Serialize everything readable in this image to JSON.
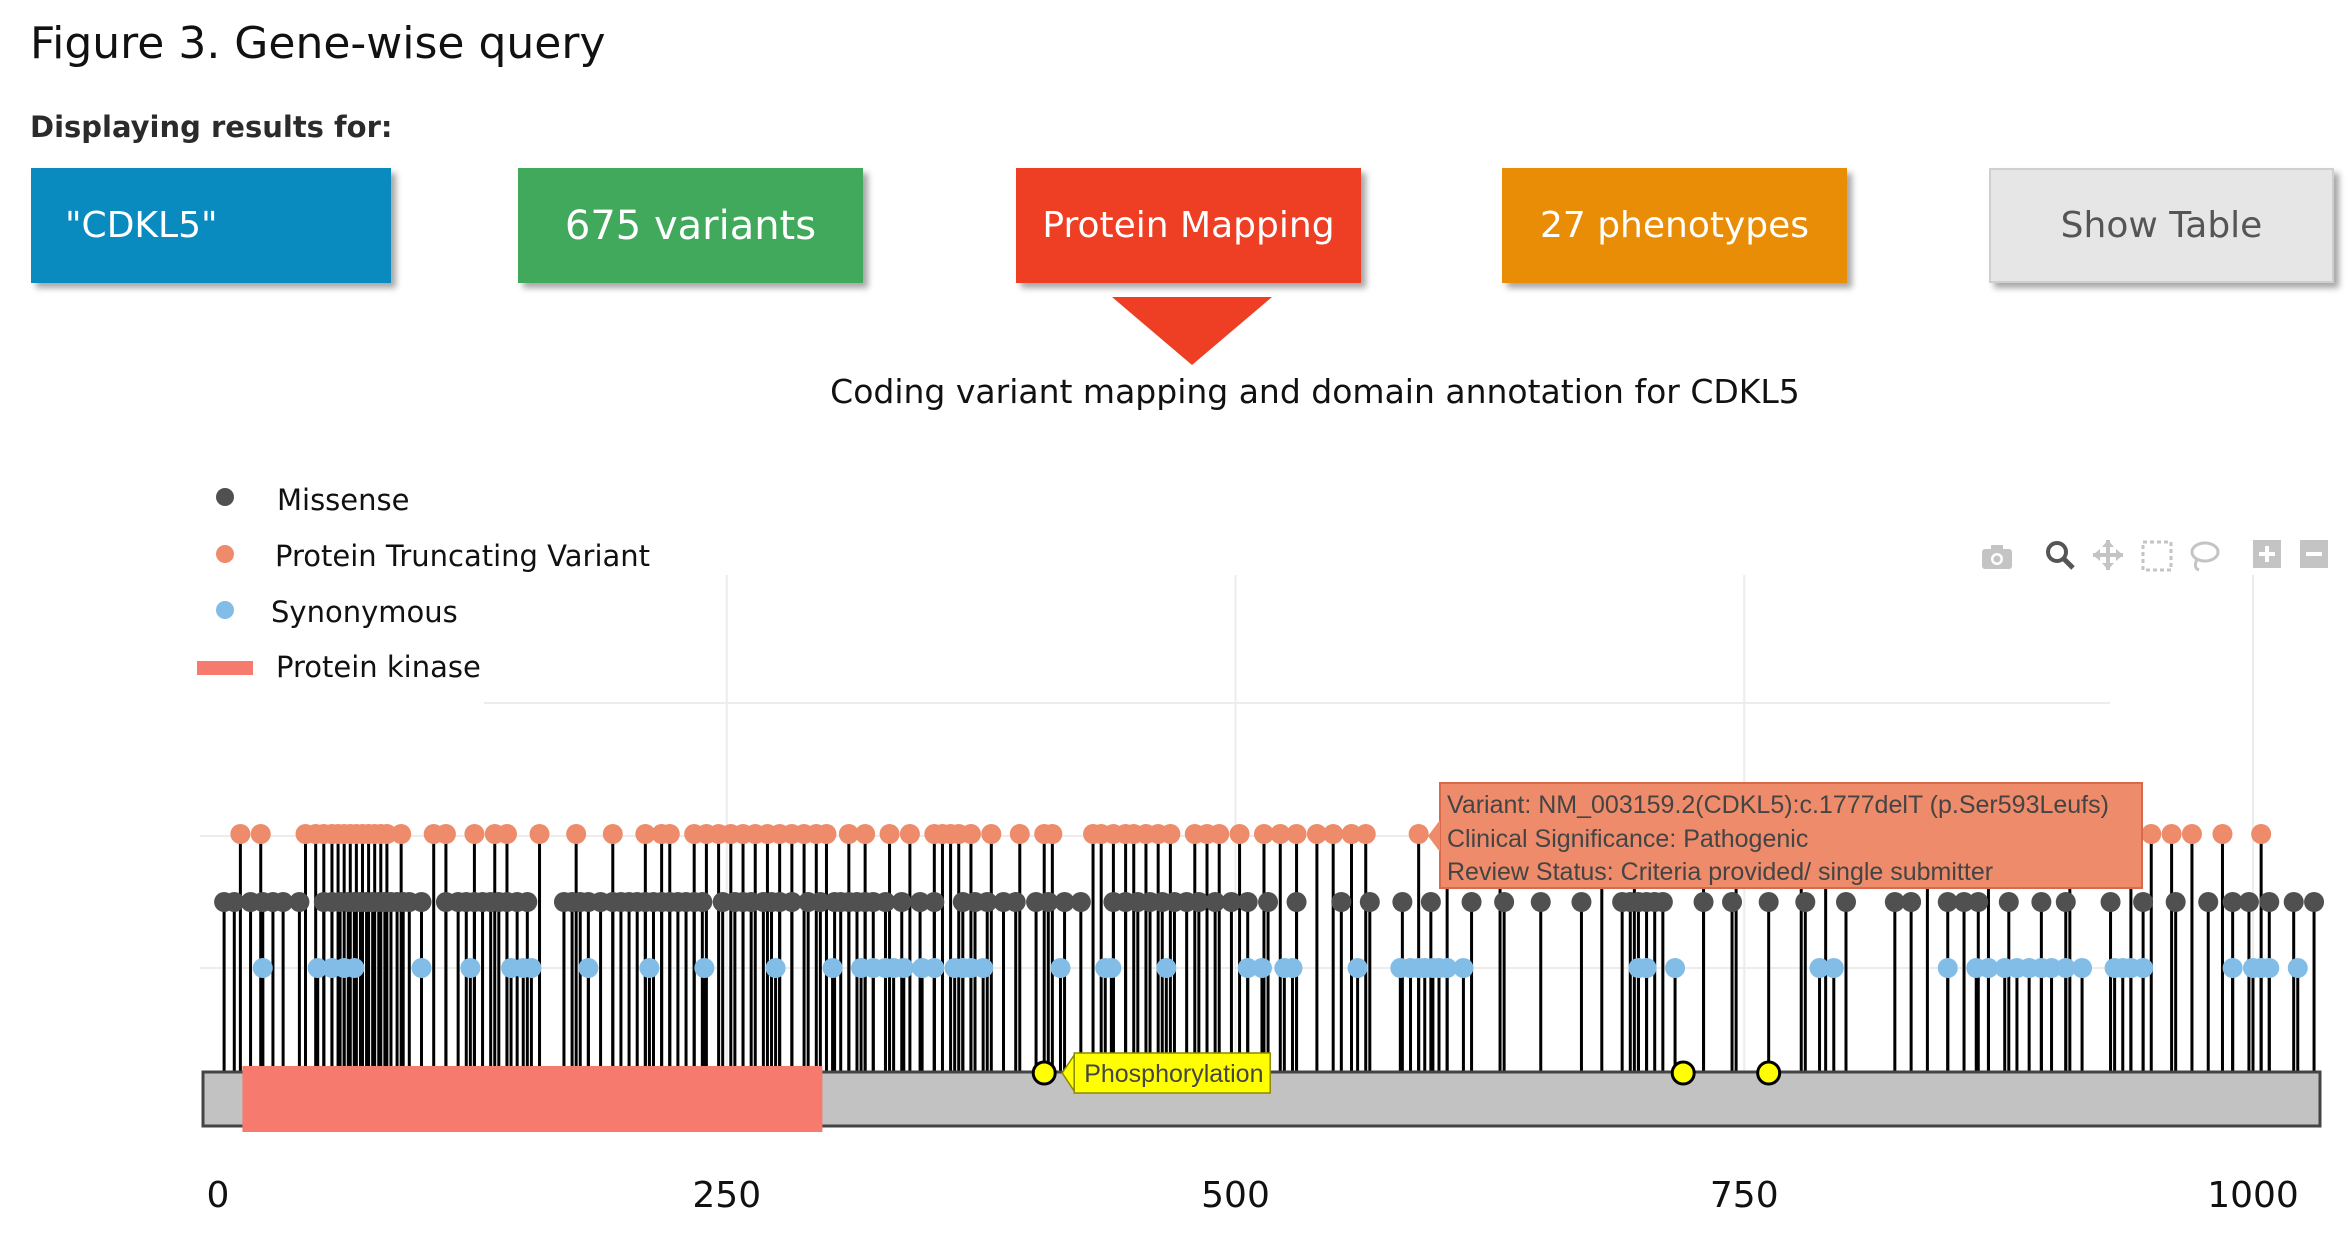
{
  "figure_title": "Figure 3. Gene-wise query",
  "display_label": "Displaying results for:",
  "tiles": {
    "gene": "\"CDKL5\"",
    "variants": "675 variants",
    "protein": "Protein Mapping",
    "phenotypes": "27 phenotypes",
    "table": "Show Table"
  },
  "colors": {
    "gene": "#0a8bbf",
    "variants": "#41a95c",
    "protein": "#ee3f24",
    "phenotypes": "#e88d05",
    "table": "#e6e6e6",
    "missense": "#505050",
    "ptv": "#ee8b6a",
    "synonymous": "#82bde8",
    "kinase": "#f77a6f",
    "backbone": "#c2c2c2",
    "site": "#ffff00"
  },
  "subtitle": "Coding variant mapping and domain annotation for CDKL5",
  "toolbar_icons": [
    "camera-icon",
    "zoom-icon",
    "pan-icon",
    "box-select-icon",
    "lasso-icon",
    "zoom-in-icon",
    "zoom-out-icon"
  ],
  "chart_data": {
    "type": "scatter",
    "xlim": [
      -5,
      1030
    ],
    "x_ticks": [
      0,
      250,
      500,
      750,
      1000
    ],
    "grid": true,
    "legend_position": "top-left",
    "legend": [
      "Missense",
      "Protein Truncating Variant",
      "Synonymous",
      "Protein kinase"
    ],
    "protein_length": 1030,
    "series": [
      {
        "name": "Missense",
        "level": 2,
        "x": [
          3,
          8,
          16,
          22,
          27,
          32,
          40,
          52,
          56,
          60,
          64,
          67,
          70,
          73,
          76,
          79,
          82,
          85,
          88,
          91,
          94,
          100,
          112,
          118,
          122,
          126,
          130,
          134,
          138,
          142,
          147,
          152,
          170,
          174,
          178,
          182,
          188,
          194,
          198,
          202,
          206,
          210,
          214,
          218,
          222,
          226,
          230,
          234,
          238,
          248,
          254,
          258,
          262,
          268,
          272,
          276,
          282,
          290,
          296,
          303,
          306,
          310,
          314,
          318,
          322,
          328,
          336,
          345,
          352,
          366,
          372,
          378,
          386,
          392,
          402,
          408,
          416,
          424,
          440,
          446,
          452,
          458,
          464,
          470,
          476,
          482,
          490,
          498,
          506,
          516,
          530,
          552,
          566,
          582,
          596,
          616,
          632,
          650,
          670,
          690,
          694,
          698,
          702,
          706,
          710,
          730,
          744,
          762,
          780,
          800,
          824,
          832,
          850,
          858,
          865,
          880,
          896,
          908,
          930,
          946,
          962,
          978,
          990,
          998,
          1008,
          1020,
          1030
        ]
      },
      {
        "name": "Protein Truncating Variant",
        "level": 3,
        "x": [
          11,
          21,
          43,
          48,
          52,
          56,
          59,
          62,
          65,
          68,
          71,
          74,
          77,
          80,
          83,
          90,
          106,
          112,
          126,
          136,
          142,
          158,
          176,
          194,
          210,
          218,
          222,
          234,
          240,
          246,
          252,
          258,
          264,
          270,
          276,
          282,
          288,
          294,
          299,
          310,
          318,
          330,
          340,
          352,
          356,
          360,
          364,
          370,
          380,
          394,
          406,
          410,
          430,
          434,
          440,
          446,
          450,
          456,
          462,
          468,
          480,
          486,
          492,
          502,
          514,
          522,
          530,
          540,
          548,
          557,
          564,
          590,
          604,
          630,
          680,
          696,
          730,
          746,
          778,
          790,
          840,
          870,
          910,
          940,
          950,
          960,
          970,
          985,
          1004
        ]
      },
      {
        "name": "Synonymous",
        "level": 1,
        "x": [
          22,
          49,
          56,
          62,
          67,
          100,
          124,
          144,
          150,
          154,
          182,
          212,
          239,
          274,
          302,
          316,
          322,
          328,
          332,
          337,
          346,
          352,
          362,
          366,
          370,
          376,
          414,
          436,
          439,
          466,
          506,
          513,
          524,
          528,
          560,
          581,
          586,
          590,
          593,
          597,
          600,
          604,
          612,
          698,
          702,
          716,
          787,
          794,
          850,
          864,
          870,
          878,
          884,
          890,
          896,
          901,
          908,
          916,
          932,
          936,
          940,
          946,
          990,
          1000,
          1004,
          1008,
          1022
        ]
      },
      {
        "name": "Protein kinase",
        "type": "domain",
        "range": [
          12,
          297
        ]
      }
    ],
    "sites": [
      {
        "x": 406,
        "label": "Phosphorylation"
      },
      {
        "x": 720,
        "label": ""
      },
      {
        "x": 762,
        "label": ""
      }
    ],
    "tooltip": {
      "variant": "Variant: NM_003159.2(CDKL5):c.1777delT (p.Ser593Leufs)",
      "significance": "Clinical Significance: Pathogenic",
      "review": "Review Status: Criteria provided/ single submitter"
    }
  }
}
